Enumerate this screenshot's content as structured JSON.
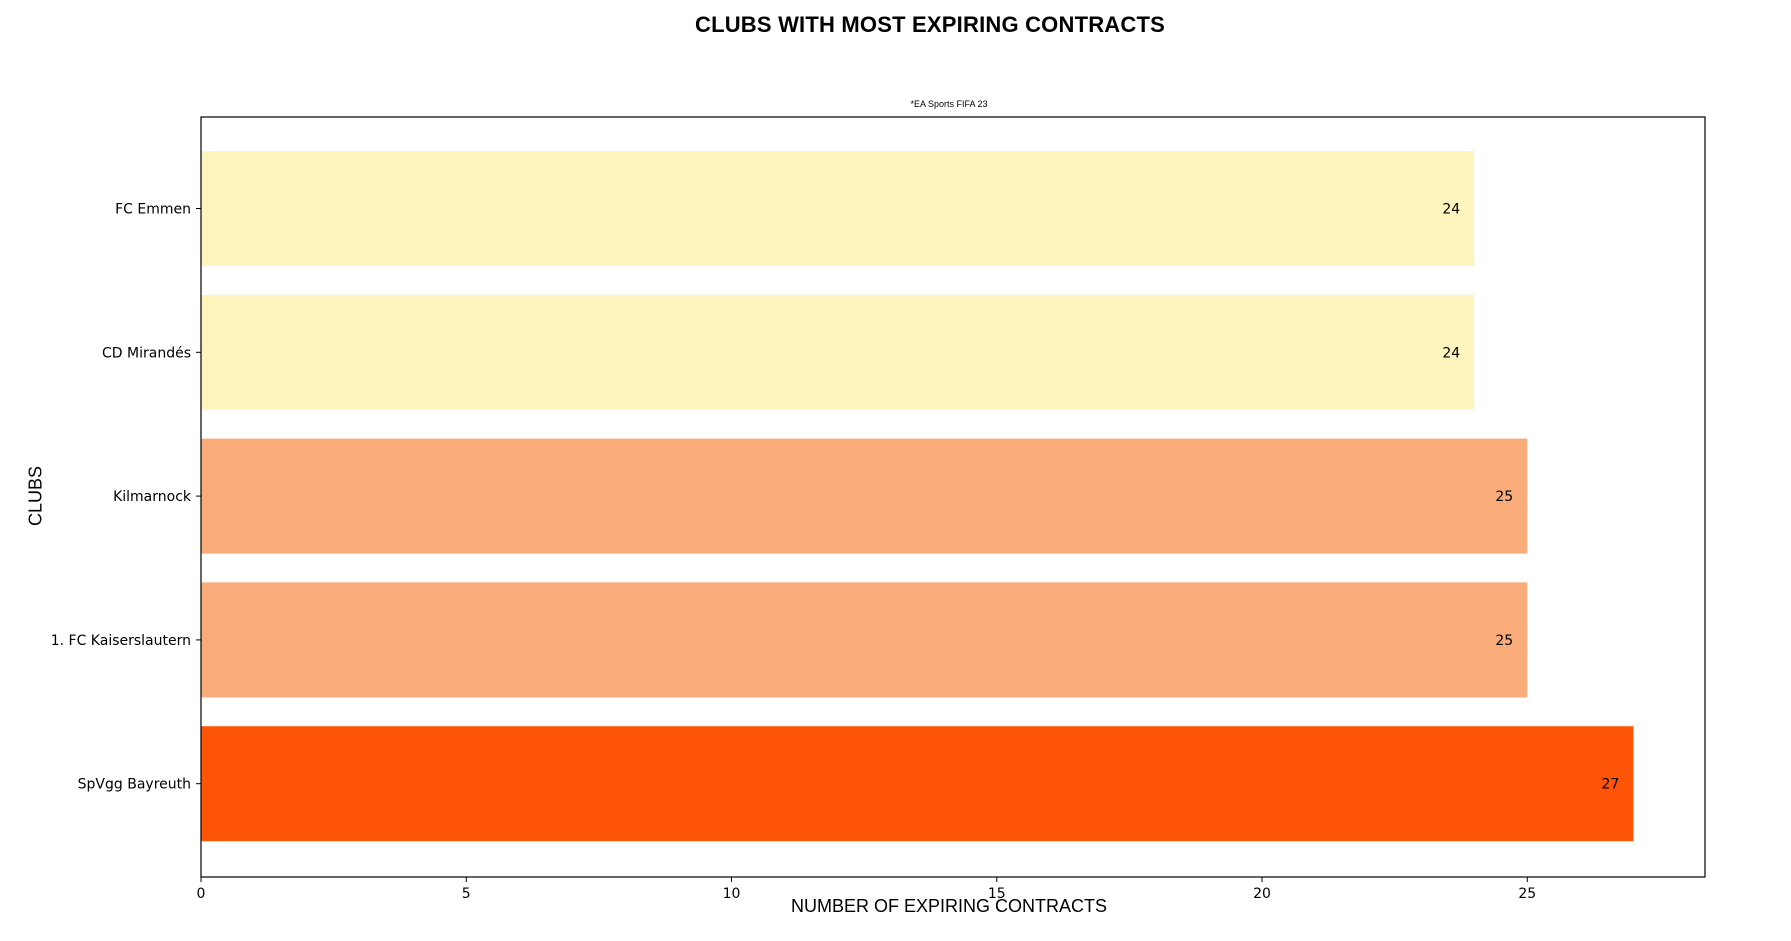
{
  "chart_data": {
    "type": "bar",
    "orientation": "horizontal",
    "title": "CLUBS WITH MOST EXPIRING CONTRACTS",
    "subtitle": "*EA Sports FIFA 23",
    "xlabel": "NUMBER OF EXPIRING CONTRACTS",
    "ylabel": "CLUBS",
    "categories": [
      "SpVgg Bayreuth",
      "1. FC Kaiserslautern",
      "Kilmarnock",
      "CD Mirandés",
      "FC Emmen"
    ],
    "values": [
      27,
      25,
      25,
      24,
      24
    ],
    "data_labels": [
      "27",
      "25",
      "25",
      "24",
      "24"
    ],
    "colors": [
      "#fe5408",
      "#f9ab79",
      "#f9ab79",
      "#fef4be",
      "#fef4be"
    ],
    "xlim": [
      0,
      28.35
    ],
    "xticks": [
      0,
      5,
      10,
      15,
      20,
      25
    ],
    "xtick_labels": [
      "0",
      "5",
      "10",
      "15",
      "20",
      "25"
    ],
    "grid": false,
    "legend": "none"
  }
}
